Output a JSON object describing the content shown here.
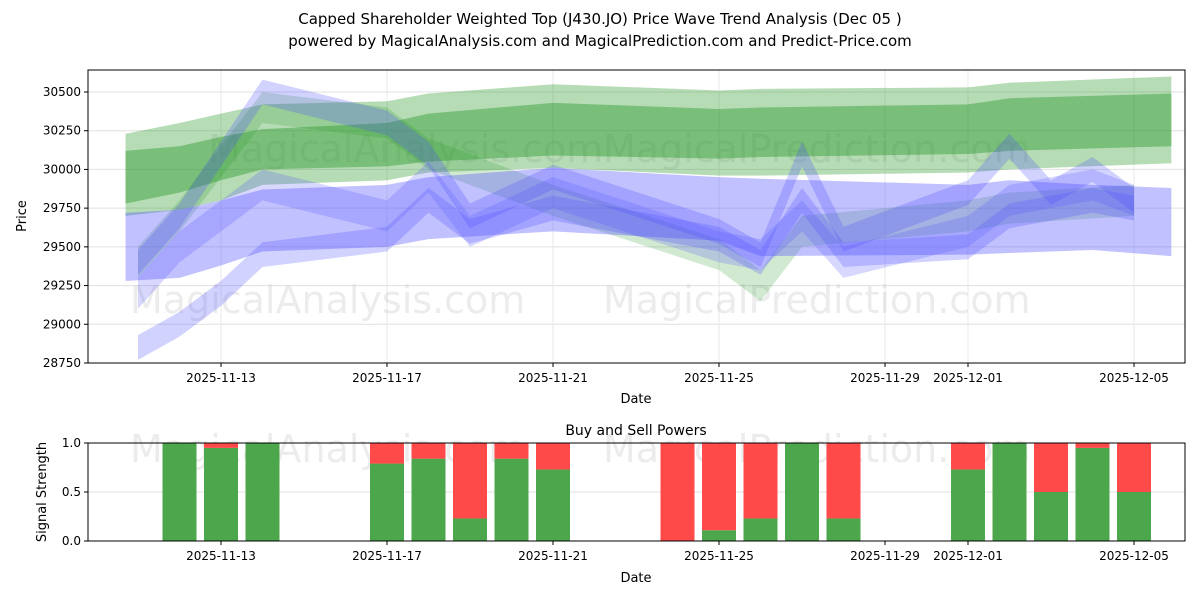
{
  "title_line1": "Capped Shareholder Weighted Top (J430.JO) Price Wave Trend Analysis (Dec 05 )",
  "title_line2": "powered by MagicalAnalysis.com and MagicalPrediction.com and Predict-Price.com",
  "watermarks": [
    "MagicalAnalysis.com",
    "MagicalPrediction.com"
  ],
  "colors": {
    "green": "#2e9a2e",
    "blue": "#4d4dff",
    "buy": "#4ca64c",
    "sell": "#ff4a4a"
  },
  "chart_data": [
    {
      "type": "area",
      "title": "",
      "xlabel": "Date",
      "ylabel": "Price",
      "ylim": [
        28750,
        30650
      ],
      "xlim": [
        "2025-11-10",
        "2025-12-06"
      ],
      "yticks": [
        28750,
        29000,
        29250,
        29500,
        29750,
        30000,
        30250,
        30500
      ],
      "xticks": [
        "2025-11-13",
        "2025-11-17",
        "2025-11-21",
        "2025-11-25",
        "2025-11-29",
        "2025-12-01",
        "2025-12-05"
      ],
      "grid": true,
      "bands": [
        {
          "name": "green-outer",
          "color": "green",
          "opacity": 0.35,
          "x": [
            "2025-11-10.7",
            "2025-11-12",
            "2025-11-13",
            "2025-11-14",
            "2025-11-17",
            "2025-11-18",
            "2025-11-21",
            "2025-11-25",
            "2025-11-26",
            "2025-12-01",
            "2025-12-02",
            "2025-12-05.9"
          ],
          "upper": [
            30230,
            30300,
            30360,
            30420,
            30440,
            30490,
            30550,
            30510,
            30520,
            30530,
            30560,
            30600
          ],
          "lower": [
            29700,
            29740,
            29800,
            29900,
            29930,
            29980,
            30010,
            29960,
            29960,
            29980,
            30000,
            30040
          ]
        },
        {
          "name": "green-inner",
          "color": "green",
          "opacity": 0.45,
          "x": [
            "2025-11-10.7",
            "2025-11-12",
            "2025-11-13",
            "2025-11-14",
            "2025-11-17",
            "2025-11-18",
            "2025-11-21",
            "2025-11-25",
            "2025-11-26",
            "2025-12-01",
            "2025-12-02",
            "2025-12-05.9"
          ],
          "upper": [
            30120,
            30150,
            30210,
            30260,
            30300,
            30360,
            30430,
            30390,
            30400,
            30420,
            30460,
            30490
          ],
          "lower": [
            29780,
            29850,
            29930,
            30000,
            30020,
            30050,
            30090,
            30070,
            30080,
            30100,
            30120,
            30150
          ]
        },
        {
          "name": "green-wave",
          "color": "green",
          "opacity": 0.22,
          "x": [
            "2025-11-11",
            "2025-11-12",
            "2025-11-14",
            "2025-11-17",
            "2025-11-18",
            "2025-11-21",
            "2025-11-25",
            "2025-11-26",
            "2025-11-27",
            "2025-12-01",
            "2025-12-02",
            "2025-12-05"
          ],
          "upper": [
            29500,
            29800,
            30500,
            30400,
            30200,
            29900,
            29550,
            29350,
            29700,
            29800,
            29850,
            29900
          ],
          "lower": [
            29300,
            29600,
            30300,
            30200,
            30000,
            29700,
            29350,
            29150,
            29500,
            29600,
            29650,
            29700
          ]
        },
        {
          "name": "blue-main",
          "color": "blue",
          "opacity": 0.35,
          "x": [
            "2025-11-10.7",
            "2025-11-12",
            "2025-11-13",
            "2025-11-14",
            "2025-11-17",
            "2025-11-18",
            "2025-11-21",
            "2025-11-25",
            "2025-11-26",
            "2025-12-01",
            "2025-12-02",
            "2025-12-04",
            "2025-12-05.9"
          ],
          "upper": [
            29720,
            29740,
            29800,
            29870,
            29900,
            29950,
            30010,
            29950,
            29940,
            29900,
            29930,
            29900,
            29880
          ],
          "lower": [
            29280,
            29300,
            29380,
            29470,
            29500,
            29550,
            29600,
            29540,
            29440,
            29450,
            29460,
            29480,
            29440
          ]
        },
        {
          "name": "blue-wave-high",
          "color": "blue",
          "opacity": 0.25,
          "x": [
            "2025-11-11",
            "2025-11-12",
            "2025-11-14",
            "2025-11-17",
            "2025-11-18",
            "2025-11-19",
            "2025-11-21",
            "2025-11-25",
            "2025-11-26",
            "2025-11-27",
            "2025-11-28",
            "2025-12-01",
            "2025-12-02",
            "2025-12-03",
            "2025-12-04",
            "2025-12-05"
          ],
          "upper": [
            29480,
            29780,
            30580,
            30380,
            30180,
            29780,
            30030,
            29680,
            29530,
            30180,
            29630,
            29930,
            30230,
            29930,
            30080,
            29880
          ],
          "lower": [
            29320,
            29620,
            30420,
            30220,
            30020,
            29620,
            29870,
            29520,
            29370,
            30020,
            29470,
            29770,
            30070,
            29770,
            29920,
            29720
          ]
        },
        {
          "name": "blue-wave-mid",
          "color": "blue",
          "opacity": 0.22,
          "x": [
            "2025-11-11",
            "2025-11-12",
            "2025-11-14",
            "2025-11-17",
            "2025-11-18",
            "2025-11-19",
            "2025-11-21",
            "2025-11-25",
            "2025-11-26",
            "2025-11-27",
            "2025-11-28",
            "2025-12-01",
            "2025-12-02",
            "2025-12-04",
            "2025-12-05"
          ],
          "upper": [
            29300,
            29600,
            30000,
            29800,
            30050,
            29700,
            29950,
            29600,
            29550,
            29800,
            29500,
            29700,
            29900,
            30000,
            29900
          ],
          "lower": [
            29100,
            29400,
            29800,
            29600,
            29850,
            29500,
            29750,
            29400,
            29350,
            29600,
            29300,
            29500,
            29700,
            29800,
            29700
          ]
        },
        {
          "name": "blue-wave-low",
          "color": "blue",
          "opacity": 0.25,
          "x": [
            "2025-11-11",
            "2025-11-12",
            "2025-11-13",
            "2025-11-14",
            "2025-11-17",
            "2025-11-18",
            "2025-11-19",
            "2025-11-21",
            "2025-11-25",
            "2025-11-26",
            "2025-11-27",
            "2025-11-28",
            "2025-12-01",
            "2025-12-02",
            "2025-12-04",
            "2025-12-05"
          ],
          "upper": [
            28930,
            29080,
            29280,
            29530,
            29630,
            29880,
            29680,
            29830,
            29630,
            29480,
            29880,
            29530,
            29580,
            29780,
            29880,
            29830
          ],
          "lower": [
            28770,
            28920,
            29120,
            29370,
            29470,
            29720,
            29520,
            29670,
            29470,
            29320,
            29720,
            29370,
            29420,
            29620,
            29720,
            29670
          ]
        }
      ]
    },
    {
      "type": "bar",
      "title": "Buy and Sell Powers",
      "xlabel": "Date",
      "ylabel": "Signal Strength",
      "ylim": [
        0,
        1
      ],
      "yticks": [
        "0.0",
        "0.5",
        "1.0"
      ],
      "xticks": [
        "2025-11-13",
        "2025-11-17",
        "2025-11-21",
        "2025-11-25",
        "2025-11-29",
        "2025-12-01",
        "2025-12-05"
      ],
      "categories": [
        "2025-11-12",
        "2025-11-13",
        "2025-11-14",
        "2025-11-17",
        "2025-11-18",
        "2025-11-19",
        "2025-11-20",
        "2025-11-21",
        "2025-11-24",
        "2025-11-25",
        "2025-11-26",
        "2025-11-27",
        "2025-11-28",
        "2025-12-01",
        "2025-12-02",
        "2025-12-03",
        "2025-12-04",
        "2025-12-05"
      ],
      "series": [
        {
          "name": "Buy",
          "values": [
            1.0,
            0.95,
            1.0,
            0.79,
            0.84,
            0.23,
            0.84,
            0.73,
            0.0,
            0.11,
            0.23,
            1.0,
            0.23,
            0.73,
            1.0,
            0.5,
            0.95,
            0.5
          ]
        },
        {
          "name": "Sell",
          "values": [
            0.0,
            0.05,
            0.0,
            0.21,
            0.16,
            0.77,
            0.16,
            0.27,
            1.0,
            0.89,
            0.77,
            0.0,
            0.77,
            0.27,
            0.0,
            0.5,
            0.05,
            0.5
          ]
        }
      ]
    }
  ]
}
